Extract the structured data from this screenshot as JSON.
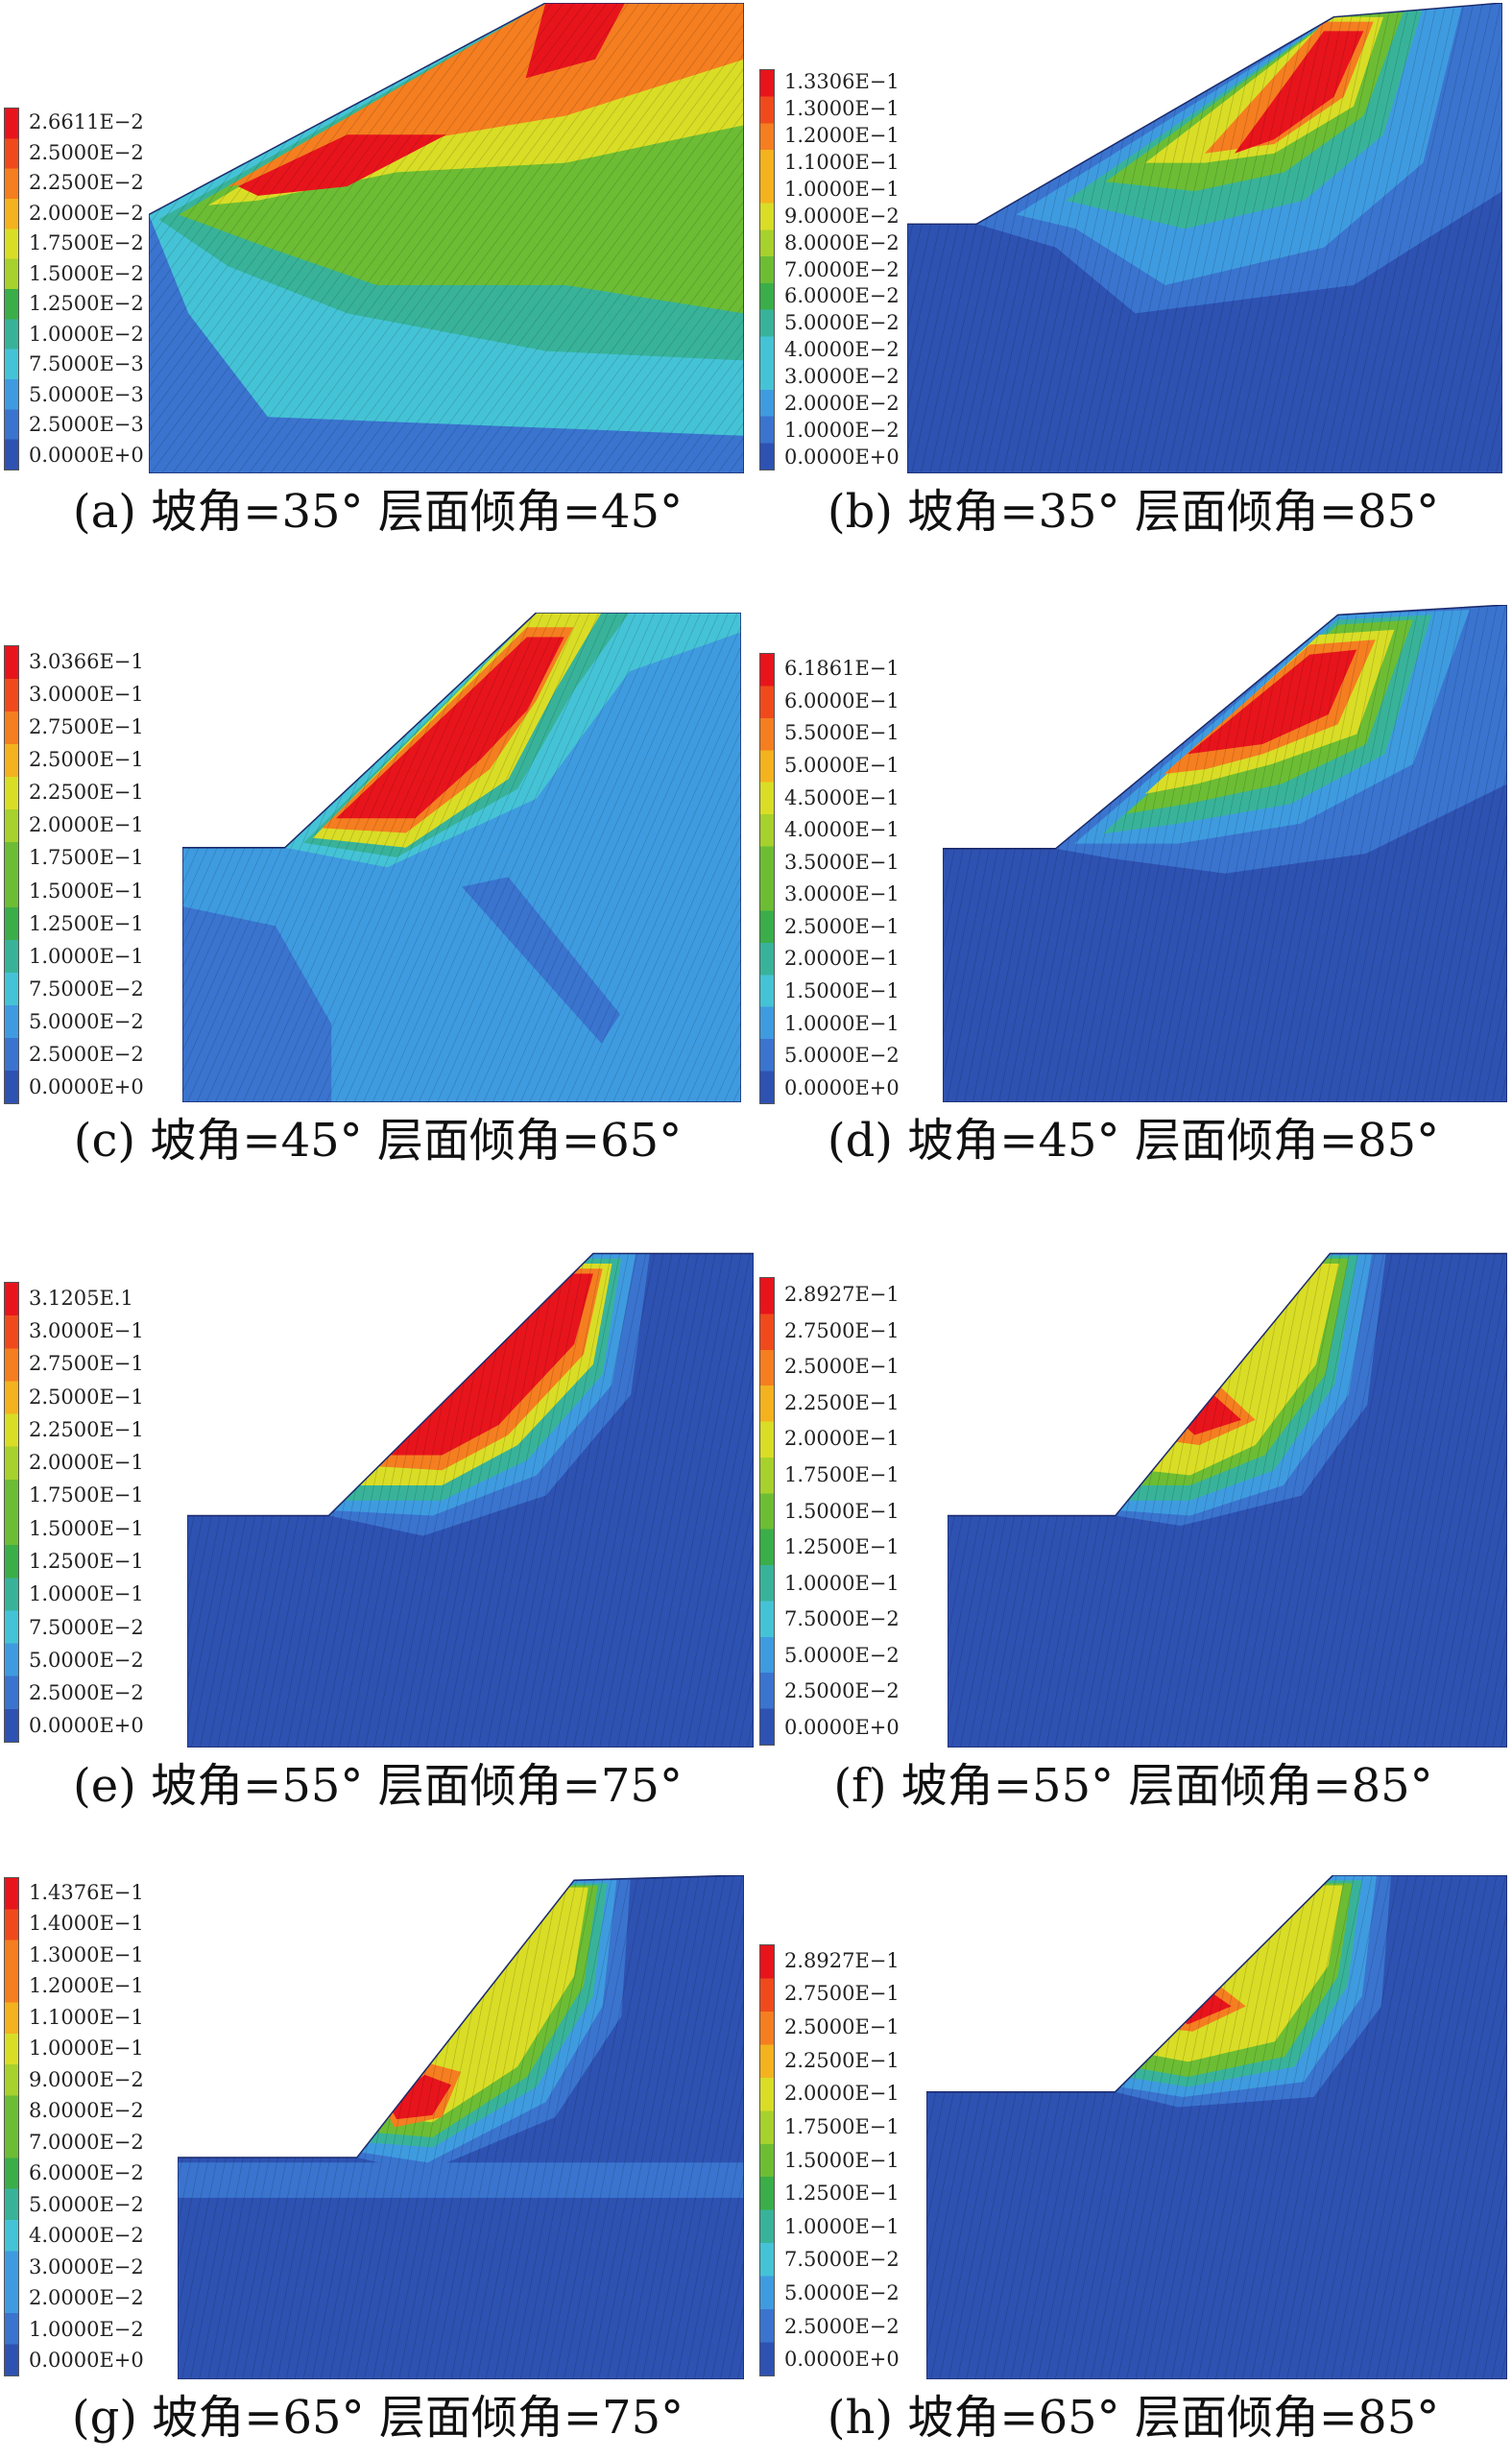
{
  "panels": [
    {
      "id": "a",
      "caption": "(a) 坡角=35° 层面倾角=45°",
      "legend": [
        "2.6611E−2",
        "2.5000E−2",
        "2.2500E−2",
        "2.0000E−2",
        "1.7500E−2",
        "1.5000E−2",
        "1.2500E−2",
        "1.0000E−2",
        "7.5000E−3",
        "5.0000E−3",
        "2.5000E−3",
        "0.0000E+0"
      ],
      "scheme": "a"
    },
    {
      "id": "b",
      "caption": "(b) 坡角=35° 层面倾角=85°",
      "legend": [
        "1.3306E−1",
        "1.3000E−1",
        "1.2000E−1",
        "1.1000E−1",
        "1.0000E−1",
        "9.0000E−2",
        "8.0000E−2",
        "7.0000E−2",
        "6.0000E−2",
        "5.0000E−2",
        "4.0000E−2",
        "3.0000E−2",
        "2.0000E−2",
        "1.0000E−2",
        "0.0000E+0"
      ],
      "scheme": "b"
    },
    {
      "id": "c",
      "caption": "(c) 坡角=45° 层面倾角=65°",
      "legend": [
        "3.0366E−1",
        "3.0000E−1",
        "2.7500E−1",
        "2.5000E−1",
        "2.2500E−1",
        "2.0000E−1",
        "1.7500E−1",
        "1.5000E−1",
        "1.2500E−1",
        "1.0000E−1",
        "7.5000E−2",
        "5.0000E−2",
        "2.5000E−2",
        "0.0000E+0"
      ],
      "scheme": "c"
    },
    {
      "id": "d",
      "caption": "(d) 坡角=45° 层面倾角=85°",
      "legend": [
        "6.1861E−1",
        "6.0000E−1",
        "5.5000E−1",
        "5.0000E−1",
        "4.5000E−1",
        "4.0000E−1",
        "3.5000E−1",
        "3.0000E−1",
        "2.5000E−1",
        "2.0000E−1",
        "1.5000E−1",
        "1.0000E−1",
        "5.0000E−2",
        "0.0000E+0"
      ],
      "scheme": "d"
    },
    {
      "id": "e",
      "caption": "(e) 坡角=55° 层面倾角=75°",
      "legend": [
        "3.1205E.1",
        "3.0000E−1",
        "2.7500E−1",
        "2.5000E−1",
        "2.2500E−1",
        "2.0000E−1",
        "1.7500E−1",
        "1.5000E−1",
        "1.2500E−1",
        "1.0000E−1",
        "7.5000E−2",
        "5.0000E−2",
        "2.5000E−2",
        "0.0000E+0"
      ],
      "scheme": "e"
    },
    {
      "id": "f",
      "caption": "(f) 坡角=55° 层面倾角=85°",
      "legend": [
        "2.8927E−1",
        "2.7500E−1",
        "2.5000E−1",
        "2.2500E−1",
        "2.0000E−1",
        "1.7500E−1",
        "1.5000E−1",
        "1.2500E−1",
        "1.0000E−1",
        "7.5000E−2",
        "5.0000E−2",
        "2.5000E−2",
        "0.0000E+0"
      ],
      "scheme": "f"
    },
    {
      "id": "g",
      "caption": "(g) 坡角=65° 层面倾角=75°",
      "legend": [
        "1.4376E−1",
        "1.4000E−1",
        "1.3000E−1",
        "1.2000E−1",
        "1.1000E−1",
        "1.0000E−1",
        "9.0000E−2",
        "8.0000E−2",
        "7.0000E−2",
        "6.0000E−2",
        "5.0000E−2",
        "4.0000E−2",
        "3.0000E−2",
        "2.0000E−2",
        "1.0000E−2",
        "0.0000E+0"
      ],
      "scheme": "g"
    },
    {
      "id": "h",
      "caption": "(h) 坡角=65° 层面倾角=85°",
      "legend": [
        "2.8927E−1",
        "2.7500E−1",
        "2.5000E−1",
        "2.2500E−1",
        "2.0000E−1",
        "1.7500E−1",
        "1.5000E−1",
        "1.2500E−1",
        "1.0000E−1",
        "7.5000E−2",
        "5.0000E−2",
        "2.5000E−2",
        "0.0000E+0"
      ],
      "scheme": "h"
    }
  ],
  "colors": {
    "ramp_high_to_low": [
      "#e8141c",
      "#f04a1c",
      "#f57e20",
      "#f3b21e",
      "#d9dd26",
      "#a7d12c",
      "#6cbd34",
      "#3aae48",
      "#38b39a",
      "#45c3d6",
      "#3f9be0",
      "#3a74cf",
      "#2e52b2"
    ]
  }
}
